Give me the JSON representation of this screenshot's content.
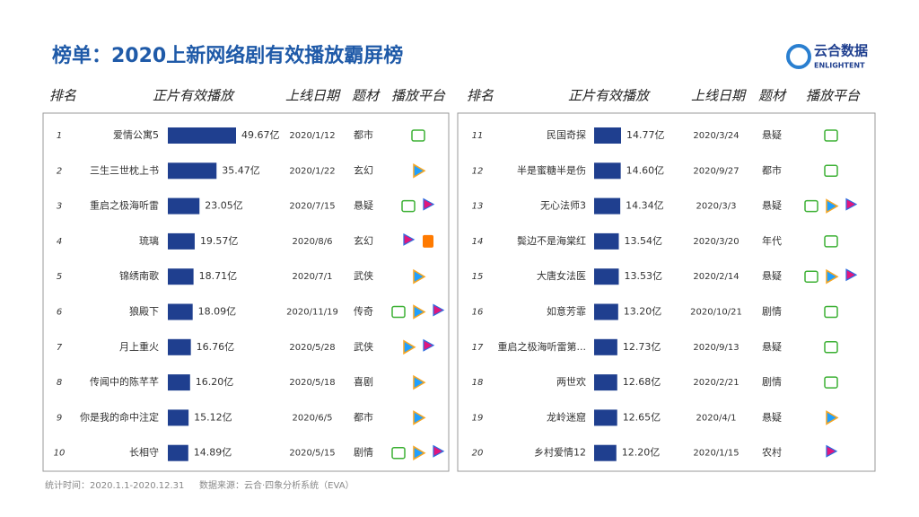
{
  "header": {
    "title": "榜单：2020上新网络剧有效播放霸屏榜"
  },
  "logo": {
    "name": "云合数据",
    "sub": "ENLIGHTENT"
  },
  "columns": [
    "排名",
    "正片有效播放",
    "上线日期",
    "题材",
    "播放平台"
  ],
  "panels": [
    {
      "rows": [
        {
          "rank": 1,
          "title": "爱情公寓5",
          "views": 49.67,
          "views_label": "49.67亿",
          "date": "2020/1/12",
          "genre": "都市"
        },
        {
          "rank": 2,
          "title": "三生三世枕上书",
          "views": 35.47,
          "views_label": "35.47亿",
          "date": "2020/1/22",
          "genre": "玄幻"
        },
        {
          "rank": 3,
          "title": "重启之极海听雷",
          "views": 23.05,
          "views_label": "23.05亿",
          "date": "2020/7/15",
          "genre": "悬疑"
        },
        {
          "rank": 4,
          "title": "琉璃",
          "views": 19.57,
          "views_label": "19.57亿",
          "date": "2020/8/6",
          "genre": "玄幻"
        },
        {
          "rank": 5,
          "title": "锦绣南歌",
          "views": 18.71,
          "views_label": "18.71亿",
          "date": "2020/7/1",
          "genre": "武侠"
        },
        {
          "rank": 6,
          "title": "狼殿下",
          "views": 18.09,
          "views_label": "18.09亿",
          "date": "2020/11/19",
          "genre": "传奇"
        },
        {
          "rank": 7,
          "title": "月上重火",
          "views": 16.76,
          "views_label": "16.76亿",
          "date": "2020/5/28",
          "genre": "武侠"
        },
        {
          "rank": 8,
          "title": "传闻中的陈芊芊",
          "views": 16.2,
          "views_label": "16.20亿",
          "date": "2020/5/18",
          "genre": "喜剧"
        },
        {
          "rank": 9,
          "title": "你是我的命中注定",
          "views": 15.12,
          "views_label": "15.12亿",
          "date": "2020/6/5",
          "genre": "都市"
        },
        {
          "rank": 10,
          "title": "长相守",
          "views": 14.89,
          "views_label": "14.89亿",
          "date": "2020/5/15",
          "genre": "剧情"
        }
      ]
    },
    {
      "rows": [
        {
          "rank": 11,
          "title": "民国奇探",
          "views": 14.77,
          "views_label": "14.77亿",
          "date": "2020/3/24",
          "genre": "悬疑"
        },
        {
          "rank": 12,
          "title": "半是蜜糖半是伤",
          "views": 14.6,
          "views_label": "14.60亿",
          "date": "2020/9/27",
          "genre": "都市"
        },
        {
          "rank": 13,
          "title": "无心法师3",
          "views": 14.34,
          "views_label": "14.34亿",
          "date": "2020/3/3",
          "genre": "悬疑"
        },
        {
          "rank": 14,
          "title": "鬓边不是海棠红",
          "views": 13.54,
          "views_label": "13.54亿",
          "date": "2020/3/20",
          "genre": "年代"
        },
        {
          "rank": 15,
          "title": "大唐女法医",
          "views": 13.53,
          "views_label": "13.53亿",
          "date": "2020/2/14",
          "genre": "悬疑"
        },
        {
          "rank": 16,
          "title": "如意芳霏",
          "views": 13.2,
          "views_label": "13.20亿",
          "date": "2020/10/21",
          "genre": "剧情"
        },
        {
          "rank": 17,
          "title": "重启之极海听雷第...",
          "views": 12.73,
          "views_label": "12.73亿",
          "date": "2020/9/13",
          "genre": "悬疑"
        },
        {
          "rank": 18,
          "title": "两世欢",
          "views": 12.68,
          "views_label": "12.68亿",
          "date": "2020/2/21",
          "genre": "剧情"
        },
        {
          "rank": 19,
          "title": "龙岭迷窟",
          "views": 12.65,
          "views_label": "12.65亿",
          "date": "2020/4/1",
          "genre": "悬疑"
        },
        {
          "rank": 20,
          "title": "乡村爱情12",
          "views": 12.2,
          "views_label": "12.20亿",
          "date": "2020/1/15",
          "genre": "农村"
        }
      ]
    }
  ],
  "footer": {
    "period": "统计时间：2020.1.1-2020.12.31",
    "source": "数据来源：云合·四象分析系统（EVA）"
  }
}
